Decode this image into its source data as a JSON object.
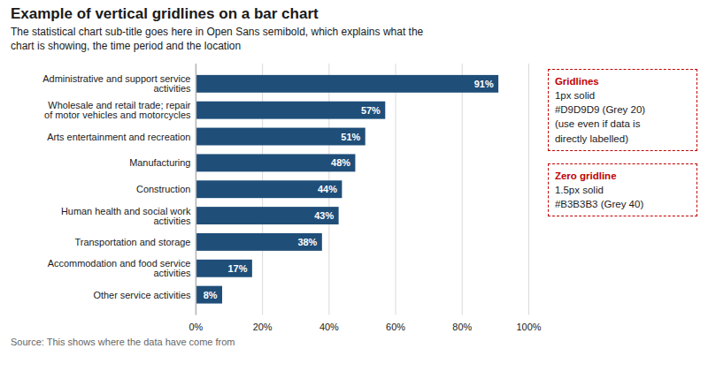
{
  "chart_data": {
    "type": "bar",
    "orientation": "horizontal",
    "title": "Example of vertical gridlines on a bar chart",
    "subtitle": "The statistical chart sub-title goes here in Open Sans semibold, which explains what the\nchart is showing, the time period and the location",
    "source": "Source: This shows where the data have come from",
    "categories": [
      "Administrative and support service\nactivities",
      "Wholesale and retail trade; repair\nof motor vehicles and motorcycles",
      "Arts entertainment and recreation",
      "Manufacturing",
      "Construction",
      "Human health and social work\nactivities",
      "Transportation and storage",
      "Accommodation and food service\nactivities",
      "Other service activities"
    ],
    "values": [
      91,
      57,
      51,
      48,
      44,
      43,
      38,
      17,
      8
    ],
    "value_labels": [
      "91%",
      "57%",
      "51%",
      "48%",
      "44%",
      "43%",
      "38%",
      "17%",
      "8%"
    ],
    "data_labels": true,
    "color": "#1F4E79",
    "xlim": [
      0,
      100
    ],
    "xticks": [
      {
        "value": 0,
        "label": "0%"
      },
      {
        "value": 20,
        "label": "20%"
      },
      {
        "value": 40,
        "label": "40%"
      },
      {
        "value": 60,
        "label": "60%"
      },
      {
        "value": 80,
        "label": "80%"
      },
      {
        "value": 100,
        "label": "100%"
      }
    ],
    "grid": true,
    "annotations": [
      {
        "title": "Gridlines",
        "text": "1px solid\n#D9D9D9 (Grey 20)\n(use even if data is\ndirectly labelled)",
        "color": "#C00000"
      },
      {
        "title": "Zero gridline",
        "text": "1.5px solid\n#B3B3B3 (Grey 40)",
        "color": "#C00000"
      }
    ]
  }
}
